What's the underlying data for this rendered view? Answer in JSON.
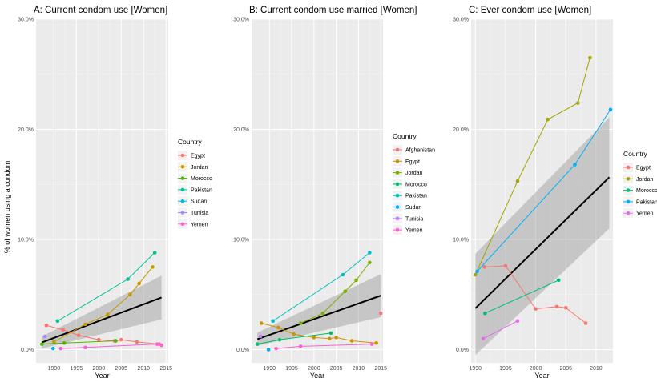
{
  "chart_data": [
    {
      "type": "line",
      "title": "A: Current condom use [Women]",
      "xlabel": "Year",
      "ylabel": "% of women using a condom",
      "xlim": [
        1986,
        2015.5
      ],
      "ylim": [
        -0.012,
        0.3
      ],
      "xticks": [
        "1990",
        "1995",
        "2000",
        "2005",
        "2010",
        "2015"
      ],
      "yticks": [
        "0.0%",
        "10.0%",
        "20.0%",
        "30.0%"
      ],
      "grid": true,
      "legend_position": "right",
      "legend_title": "Country",
      "trend": {
        "x": [
          1987.3,
          2014.0
        ],
        "y": [
          0.0065,
          0.0473
        ],
        "band_low": [
          0.001,
          0.0275
        ],
        "band_high": [
          0.012,
          0.0671
        ]
      },
      "series": [
        {
          "name": "Egypt",
          "color": "#F8766D",
          "x": [
            1988.3,
            1992.0,
            1995.5,
            2000.0,
            2003.5,
            2005.0,
            2008.5,
            2013.5
          ],
          "y": [
            0.022,
            0.018,
            0.013,
            0.009,
            0.008,
            0.009,
            0.007,
            0.005
          ]
        },
        {
          "name": "Jordan",
          "color": "#C49A00",
          "x": [
            1990.0,
            1997.0,
            2002.0,
            2007.0,
            2009.0,
            2012.0
          ],
          "y": [
            0.007,
            0.023,
            0.032,
            0.05,
            0.06,
            0.075
          ]
        },
        {
          "name": "Morocco",
          "color": "#53B400",
          "x": [
            1987.3,
            1992.3,
            2003.8
          ],
          "y": [
            0.005,
            0.006,
            0.008
          ]
        },
        {
          "name": "Pakistan",
          "color": "#00C094",
          "x": [
            1990.8,
            2006.5,
            2012.5
          ],
          "y": [
            0.026,
            0.064,
            0.088
          ]
        },
        {
          "name": "Sudan",
          "color": "#00B6EB",
          "x": [
            1989.8
          ],
          "y": [
            0.001
          ]
        },
        {
          "name": "Tunisia",
          "color": "#A58AFF",
          "x": [
            1988.0
          ],
          "y": [
            0.012
          ]
        },
        {
          "name": "Yemen",
          "color": "#FB61D7",
          "x": [
            1991.5,
            1997.0,
            2013.0,
            2014.0
          ],
          "y": [
            0.001,
            0.002,
            0.005,
            0.004
          ]
        }
      ]
    },
    {
      "type": "line",
      "title": "B: Current condom use married [Women]",
      "xlabel": "Year",
      "ylabel": "",
      "xlim": [
        1986,
        2015.5
      ],
      "ylim": [
        -0.012,
        0.3
      ],
      "xticks": [
        "1990",
        "1995",
        "2000",
        "2005",
        "2010",
        "2015"
      ],
      "yticks": [
        "0.0%",
        "10.0%",
        "20.0%",
        "30.0%"
      ],
      "grid": true,
      "legend_position": "right",
      "legend_title": "Country",
      "trend": {
        "x": [
          1987.3,
          2015.0
        ],
        "y": [
          0.0095,
          0.049
        ],
        "band_low": [
          0.0035,
          0.0295
        ],
        "band_high": [
          0.0155,
          0.0685
        ]
      },
      "series": [
        {
          "name": "Afghanistan",
          "color": "#F8766D",
          "x": [
            2015.0
          ],
          "y": [
            0.033
          ]
        },
        {
          "name": "Egypt",
          "color": "#CD9600",
          "x": [
            1988.2,
            1992.0,
            1995.5,
            2000.0,
            2003.5,
            2005.0,
            2008.5,
            2014.0
          ],
          "y": [
            0.024,
            0.02,
            0.014,
            0.011,
            0.01,
            0.011,
            0.008,
            0.006
          ]
        },
        {
          "name": "Jordan",
          "color": "#7CAE00",
          "x": [
            1997.0,
            2002.0,
            2007.0,
            2009.5,
            2012.5
          ],
          "y": [
            0.024,
            0.033,
            0.053,
            0.063,
            0.079
          ]
        },
        {
          "name": "Morocco",
          "color": "#00BE67",
          "x": [
            1987.3,
            1992.3,
            2003.8
          ],
          "y": [
            0.005,
            0.009,
            0.015
          ]
        },
        {
          "name": "Pakistan",
          "color": "#00BFC4",
          "x": [
            1990.8,
            2006.5,
            2012.5
          ],
          "y": [
            0.026,
            0.068,
            0.088
          ]
        },
        {
          "name": "Sudan",
          "color": "#00A9FF",
          "x": [
            1989.8
          ],
          "y": [
            0.0
          ]
        },
        {
          "name": "Tunisia",
          "color": "#C77CFF",
          "x": [
            1988.0
          ],
          "y": [
            0.012
          ]
        },
        {
          "name": "Yemen",
          "color": "#FF61CC",
          "x": [
            1991.5,
            1997.0,
            2013.0
          ],
          "y": [
            0.001,
            0.003,
            0.005
          ]
        }
      ]
    },
    {
      "type": "line",
      "title": "C: Ever condom use [Women]",
      "xlabel": "Year",
      "ylabel": "",
      "xlim": [
        1989.3,
        2012.8
      ],
      "ylim": [
        -0.012,
        0.3
      ],
      "xticks": [
        "1990",
        "1995",
        "2000",
        "2005",
        "2010"
      ],
      "yticks": [
        "0.0%",
        "10.0%",
        "20.0%",
        "30.0%"
      ],
      "grid": true,
      "legend_position": "right",
      "legend_title": "Country",
      "trend": {
        "x": [
          1990.0,
          2012.2
        ],
        "y": [
          0.0375,
          0.1565
        ],
        "band_low": [
          -0.005,
          0.11
        ],
        "band_high": [
          0.087,
          0.211
        ]
      },
      "series": [
        {
          "name": "Egypt",
          "color": "#F8766D",
          "x": [
            1991.5,
            1995.0,
            2000.0,
            2003.5,
            2005.0,
            2008.3
          ],
          "y": [
            0.075,
            0.076,
            0.037,
            0.039,
            0.038,
            0.024
          ]
        },
        {
          "name": "Jordan",
          "color": "#A3A500",
          "x": [
            1990.0,
            1997.0,
            2002.0,
            2007.0,
            2009.0
          ],
          "y": [
            0.068,
            0.153,
            0.209,
            0.224,
            0.265
          ]
        },
        {
          "name": "Morocco",
          "color": "#00BF7D",
          "x": [
            1991.6,
            2003.8
          ],
          "y": [
            0.033,
            0.063
          ]
        },
        {
          "name": "Pakistan",
          "color": "#00B0F6",
          "x": [
            1990.3,
            2006.5,
            2012.4
          ],
          "y": [
            0.071,
            0.168,
            0.218
          ]
        },
        {
          "name": "Yemen",
          "color": "#E76BF3",
          "x": [
            1991.3,
            1997.0
          ],
          "y": [
            0.01,
            0.026
          ]
        }
      ]
    }
  ]
}
